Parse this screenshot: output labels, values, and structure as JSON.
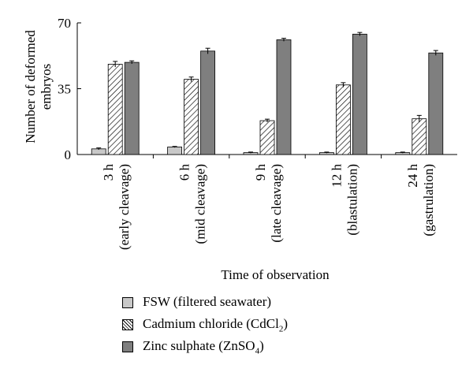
{
  "chart_data": {
    "type": "bar",
    "ylabel_lines": [
      "Number of deformed",
      "embryos"
    ],
    "xlabel": "Time of observation",
    "ylim": [
      0,
      70
    ],
    "yticks": [
      0,
      35,
      70
    ],
    "categories": [
      {
        "line1": "3 h",
        "line2": "(early cleavage)"
      },
      {
        "line1": "6 h",
        "line2": "(mid cleavage)"
      },
      {
        "line1": "9 h",
        "line2": "(late cleavage)"
      },
      {
        "line1": "12 h",
        "line2": "(blastulation)"
      },
      {
        "line1": "24 h",
        "line2": "(gastrulation)"
      }
    ],
    "series": [
      {
        "name": "FSW (filtered seawater)",
        "values": [
          3,
          4,
          1,
          1,
          1
        ],
        "errors": [
          0.5,
          0.3,
          0.3,
          0.3,
          0.3
        ],
        "color": "#c8c8c8"
      },
      {
        "name": "Cadmium chloride (CdCl2)",
        "values": [
          48,
          40,
          18,
          37,
          19
        ],
        "errors": [
          1.5,
          1.2,
          0.8,
          1.2,
          1.8
        ],
        "color": "#ffffff",
        "pattern": "diagonal-hatch"
      },
      {
        "name": "Zinc sulphate (ZnSO4)",
        "values": [
          49,
          55,
          61,
          64,
          54
        ],
        "errors": [
          0.8,
          1.5,
          0.8,
          0.9,
          1.3
        ],
        "color": "#7f7f7f"
      }
    ],
    "legend": {
      "placement": "bottom-left",
      "items": [
        {
          "text": "FSW (filtered seawater)",
          "sub": "",
          "after": ""
        },
        {
          "text": "Cadmium chloride (CdCl",
          "sub": "2",
          "after": ")"
        },
        {
          "text": "Zinc sulphate (ZnSO",
          "sub": "4",
          "after": ")"
        }
      ]
    },
    "grid": false
  }
}
